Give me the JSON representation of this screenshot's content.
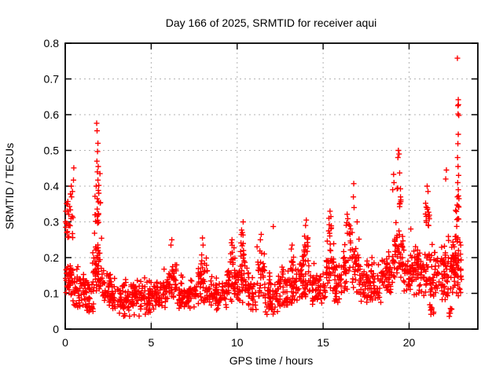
{
  "chart_data": {
    "type": "scatter",
    "title": "Day 166 of 2025, SRMTID for receiver aqui",
    "xlabel": "GPS time / hours",
    "ylabel": "SRMTID / TECUs",
    "xlim": [
      0,
      24
    ],
    "ylim": [
      0,
      0.8
    ],
    "xticks": [
      0,
      5,
      10,
      15,
      20
    ],
    "xtick_labels": [
      "0",
      "5",
      "10",
      "15",
      "20"
    ],
    "yticks": [
      0,
      0.1,
      0.2,
      0.3,
      0.4,
      0.5,
      0.6,
      0.7,
      0.8
    ],
    "ytick_labels": [
      "0",
      "0.1",
      "0.2",
      "0.3",
      "0.4",
      "0.5",
      "0.6",
      "0.7",
      "0.8"
    ],
    "grid": true,
    "legend_position": "none",
    "marker": {
      "shape": "plus",
      "color": "#ff0000",
      "size": 7
    },
    "frame_color": "#000000",
    "grid_color": "#b3b3b3",
    "series": [
      {
        "name": "SRMTID",
        "outlier_points": [
          [
            0.5,
            0.451
          ],
          [
            0.48,
            0.417
          ],
          [
            0.42,
            0.385
          ],
          [
            0.35,
            0.4
          ],
          [
            0.3,
            0.378
          ],
          [
            0.37,
            0.37
          ],
          [
            0.15,
            0.357
          ],
          [
            0.25,
            0.343
          ],
          [
            0.02,
            0.3
          ],
          [
            0.03,
            0.285
          ],
          [
            1.83,
            0.576
          ],
          [
            1.85,
            0.555
          ],
          [
            1.9,
            0.52
          ],
          [
            1.88,
            0.497
          ],
          [
            1.84,
            0.47
          ],
          [
            1.92,
            0.455
          ],
          [
            1.87,
            0.44
          ],
          [
            1.95,
            0.402
          ],
          [
            1.8,
            0.4
          ],
          [
            1.86,
            0.365
          ],
          [
            1.93,
            0.356
          ],
          [
            2.02,
            0.435
          ],
          [
            6.2,
            0.25
          ],
          [
            6.15,
            0.235
          ],
          [
            7.98,
            0.255
          ],
          [
            8.02,
            0.235
          ],
          [
            9.7,
            0.25
          ],
          [
            10.35,
            0.3
          ],
          [
            10.3,
            0.27
          ],
          [
            11.4,
            0.265
          ],
          [
            11.35,
            0.25
          ],
          [
            12.1,
            0.287
          ],
          [
            13.2,
            0.235
          ],
          [
            14.02,
            0.305
          ],
          [
            13.98,
            0.29
          ],
          [
            15.4,
            0.33
          ],
          [
            15.45,
            0.315
          ],
          [
            16.78,
            0.407
          ],
          [
            16.76,
            0.37
          ],
          [
            16.8,
            0.34
          ],
          [
            16.98,
            0.3
          ],
          [
            19.05,
            0.39
          ],
          [
            19.1,
            0.433
          ],
          [
            19.12,
            0.41
          ],
          [
            19.38,
            0.5
          ],
          [
            19.42,
            0.49
          ],
          [
            19.35,
            0.48
          ],
          [
            19.45,
            0.437
          ],
          [
            19.5,
            0.37
          ],
          [
            20.1,
            0.28
          ],
          [
            21.05,
            0.4
          ],
          [
            21.1,
            0.385
          ],
          [
            22.17,
            0.445
          ],
          [
            22.13,
            0.42
          ],
          [
            22.81,
            0.758
          ],
          [
            22.86,
            0.642
          ],
          [
            22.87,
            0.628
          ],
          [
            22.84,
            0.625
          ],
          [
            22.85,
            0.602
          ],
          [
            22.89,
            0.598
          ],
          [
            22.86,
            0.545
          ],
          [
            22.84,
            0.519
          ],
          [
            22.82,
            0.48
          ],
          [
            22.85,
            0.455
          ],
          [
            22.88,
            0.43
          ],
          [
            22.83,
            0.41
          ],
          [
            22.86,
            0.39
          ],
          [
            22.81,
            0.37
          ],
          [
            22.9,
            0.365
          ]
        ],
        "density_segments": [
          [
            0.02,
            0.45,
            0.09,
            0.23,
            40
          ],
          [
            0.02,
            0.45,
            0.23,
            0.4,
            20
          ],
          [
            0.45,
            1.55,
            0.05,
            0.2,
            70
          ],
          [
            1.2,
            1.7,
            0.035,
            0.09,
            12
          ],
          [
            1.55,
            2.15,
            0.1,
            0.3,
            55
          ],
          [
            1.7,
            2.05,
            0.28,
            0.46,
            16
          ],
          [
            2.15,
            2.7,
            0.06,
            0.2,
            40
          ],
          [
            2.7,
            5.2,
            0.05,
            0.16,
            160
          ],
          [
            3.0,
            5.0,
            0.03,
            0.062,
            10
          ],
          [
            5.2,
            5.9,
            0.06,
            0.18,
            45
          ],
          [
            5.9,
            6.5,
            0.08,
            0.25,
            45
          ],
          [
            6.5,
            7.7,
            0.05,
            0.17,
            75
          ],
          [
            7.7,
            8.3,
            0.07,
            0.26,
            45
          ],
          [
            8.3,
            9.4,
            0.05,
            0.17,
            70
          ],
          [
            9.4,
            10.6,
            0.07,
            0.24,
            80
          ],
          [
            9.6,
            9.9,
            0.18,
            0.26,
            10
          ],
          [
            10.2,
            10.45,
            0.18,
            0.3,
            12
          ],
          [
            10.6,
            11.15,
            0.05,
            0.18,
            35
          ],
          [
            11.15,
            11.6,
            0.08,
            0.27,
            30
          ],
          [
            11.6,
            12.4,
            0.04,
            0.19,
            55
          ],
          [
            12.4,
            13.6,
            0.06,
            0.21,
            80
          ],
          [
            13.1,
            13.35,
            0.15,
            0.24,
            10
          ],
          [
            13.6,
            14.35,
            0.08,
            0.27,
            50
          ],
          [
            13.9,
            14.15,
            0.2,
            0.3,
            12
          ],
          [
            14.35,
            15.15,
            0.06,
            0.2,
            55
          ],
          [
            15.15,
            15.65,
            0.1,
            0.3,
            35
          ],
          [
            15.25,
            15.55,
            0.25,
            0.33,
            8
          ],
          [
            15.65,
            16.15,
            0.07,
            0.22,
            35
          ],
          [
            16.15,
            17.1,
            0.1,
            0.3,
            60
          ],
          [
            16.3,
            16.6,
            0.25,
            0.34,
            10
          ],
          [
            17.1,
            18.4,
            0.07,
            0.22,
            85
          ],
          [
            18.4,
            19.15,
            0.09,
            0.27,
            55
          ],
          [
            19.15,
            19.65,
            0.13,
            0.38,
            45
          ],
          [
            19.3,
            19.55,
            0.34,
            0.44,
            8
          ],
          [
            19.65,
            20.45,
            0.09,
            0.26,
            55
          ],
          [
            20.45,
            21.45,
            0.08,
            0.28,
            70
          ],
          [
            20.95,
            21.25,
            0.28,
            0.4,
            14
          ],
          [
            21.2,
            21.5,
            0.04,
            0.08,
            8
          ],
          [
            21.45,
            22.45,
            0.08,
            0.3,
            70
          ],
          [
            22.3,
            22.55,
            0.03,
            0.07,
            6
          ],
          [
            22.45,
            23.05,
            0.08,
            0.32,
            75
          ],
          [
            22.7,
            22.95,
            0.28,
            0.38,
            10
          ]
        ]
      }
    ]
  }
}
